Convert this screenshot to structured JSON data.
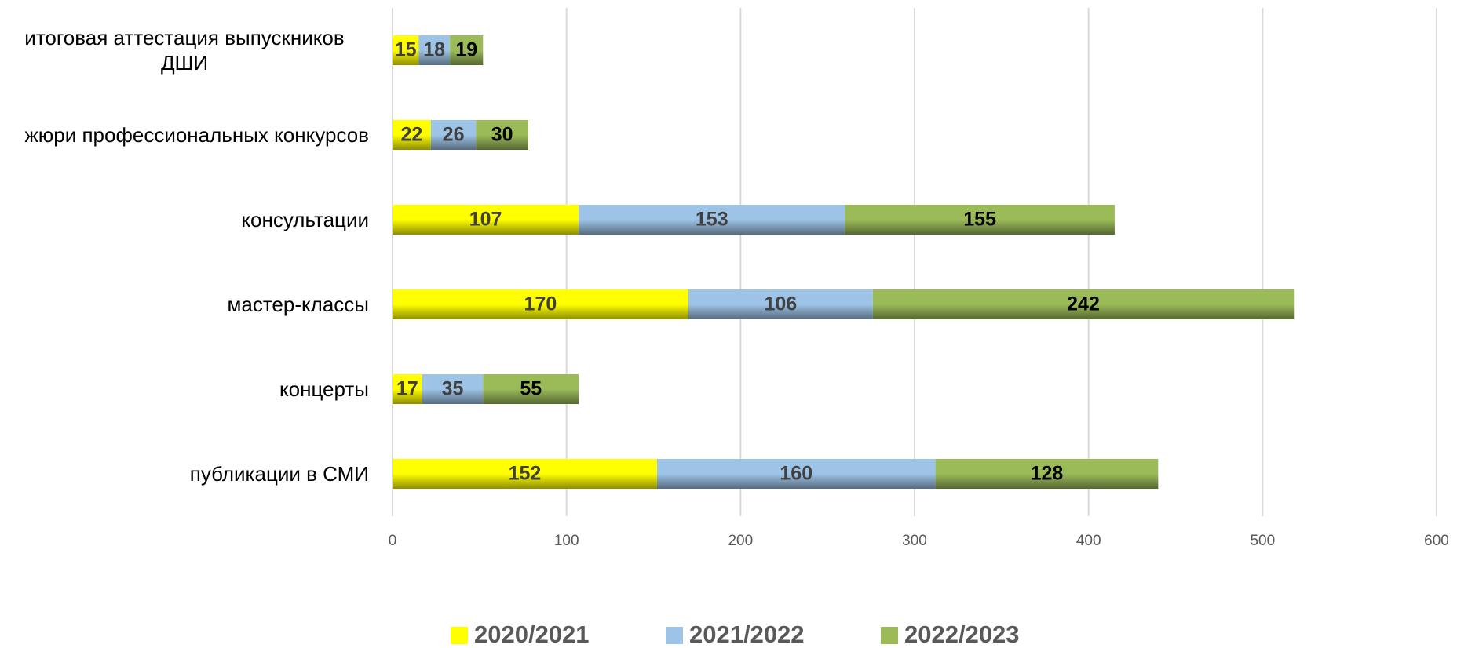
{
  "chart_data": {
    "type": "stacked-barh",
    "categories": [
      "итоговая аттестация выпускников ДШИ",
      "жюри профессиональных конкурсов",
      "консультации",
      "мастер-классы",
      "концерты",
      "публикации в СМИ"
    ],
    "series": [
      {
        "name": "2020/2021",
        "color": "#ffff00",
        "values": [
          15,
          22,
          107,
          170,
          17,
          152
        ]
      },
      {
        "name": "2021/2022",
        "color": "#9dc3e6",
        "values": [
          18,
          26,
          153,
          106,
          35,
          160
        ]
      },
      {
        "name": "2022/2023",
        "color": "#9bbb59",
        "values": [
          19,
          30,
          155,
          242,
          55,
          128
        ]
      }
    ],
    "xlim": [
      0,
      600
    ],
    "xticks": [
      0,
      100,
      200,
      300,
      400,
      500,
      600
    ],
    "grid": true,
    "legend": "bottom"
  }
}
